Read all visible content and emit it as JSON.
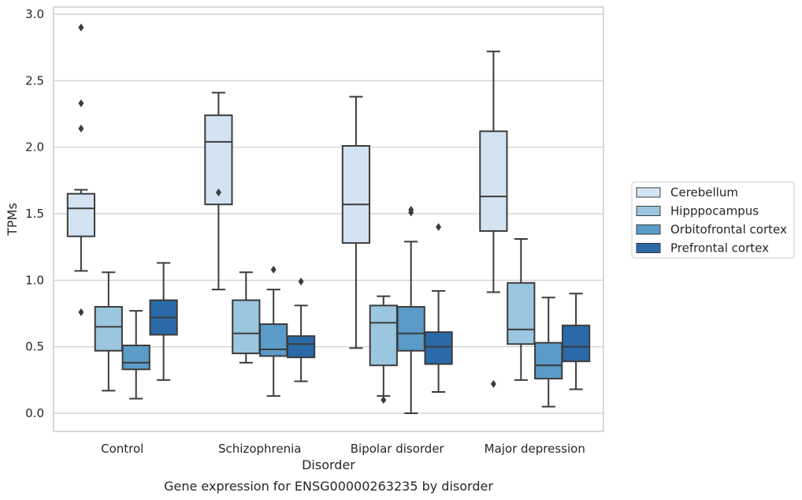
{
  "chart_data": {
    "type": "box",
    "title": "Gene expression for ENSG00000263235 by disorder",
    "xlabel": "Disorder",
    "ylabel": "TPMs",
    "ylim": [
      -0.14,
      3.05
    ],
    "yticks": [
      "0.0",
      "0.5",
      "1.0",
      "1.5",
      "2.0",
      "2.5",
      "3.0"
    ],
    "grid": "horizontal",
    "legend_position": "right",
    "categories": [
      "Control",
      "Schizophrenia",
      "Bipolar disorder",
      "Major depression"
    ],
    "series": [
      {
        "name": "Cerebellum",
        "color": "#d4e3f1",
        "boxes": [
          {
            "low": 1.07,
            "q1": 1.33,
            "median": 1.54,
            "q3": 1.65,
            "high": 1.68,
            "outliers": [
              0.76,
              2.14,
              2.33,
              2.9
            ]
          },
          {
            "low": 0.93,
            "q1": 1.57,
            "median": 2.04,
            "q3": 2.24,
            "high": 2.41,
            "outliers": [
              1.66
            ]
          },
          {
            "low": 0.49,
            "q1": 1.28,
            "median": 1.57,
            "q3": 2.01,
            "high": 2.38,
            "outliers": []
          },
          {
            "low": 0.91,
            "q1": 1.37,
            "median": 1.63,
            "q3": 2.12,
            "high": 2.72,
            "outliers": [
              0.22
            ]
          }
        ]
      },
      {
        "name": "Hipppocampus",
        "color": "#9ac6df",
        "boxes": [
          {
            "low": 0.17,
            "q1": 0.47,
            "median": 0.65,
            "q3": 0.8,
            "high": 1.06,
            "outliers": []
          },
          {
            "low": 0.38,
            "q1": 0.45,
            "median": 0.6,
            "q3": 0.85,
            "high": 1.06,
            "outliers": []
          },
          {
            "low": 0.13,
            "q1": 0.36,
            "median": 0.68,
            "q3": 0.81,
            "high": 0.88,
            "outliers": [
              0.1
            ]
          },
          {
            "low": 0.25,
            "q1": 0.52,
            "median": 0.63,
            "q3": 0.98,
            "high": 1.31,
            "outliers": []
          }
        ]
      },
      {
        "name": "Orbitofrontal cortex",
        "color": "#5a9bc8",
        "boxes": [
          {
            "low": 0.11,
            "q1": 0.33,
            "median": 0.38,
            "q3": 0.51,
            "high": 0.77,
            "outliers": []
          },
          {
            "low": 0.13,
            "q1": 0.43,
            "median": 0.48,
            "q3": 0.67,
            "high": 0.93,
            "outliers": [
              1.08
            ]
          },
          {
            "low": 0.0,
            "q1": 0.47,
            "median": 0.6,
            "q3": 0.8,
            "high": 1.29,
            "outliers": [
              1.51,
              1.53
            ]
          },
          {
            "low": 0.05,
            "q1": 0.26,
            "median": 0.36,
            "q3": 0.53,
            "high": 0.87,
            "outliers": []
          }
        ]
      },
      {
        "name": "Prefrontal cortex",
        "color": "#2a6aa8",
        "boxes": [
          {
            "low": 0.25,
            "q1": 0.59,
            "median": 0.72,
            "q3": 0.85,
            "high": 1.13,
            "outliers": []
          },
          {
            "low": 0.24,
            "q1": 0.42,
            "median": 0.52,
            "q3": 0.58,
            "high": 0.81,
            "outliers": [
              0.99
            ]
          },
          {
            "low": 0.16,
            "q1": 0.37,
            "median": 0.5,
            "q3": 0.61,
            "high": 0.92,
            "outliers": [
              1.4
            ]
          },
          {
            "low": 0.18,
            "q1": 0.39,
            "median": 0.5,
            "q3": 0.66,
            "high": 0.9,
            "outliers": []
          }
        ]
      }
    ]
  }
}
